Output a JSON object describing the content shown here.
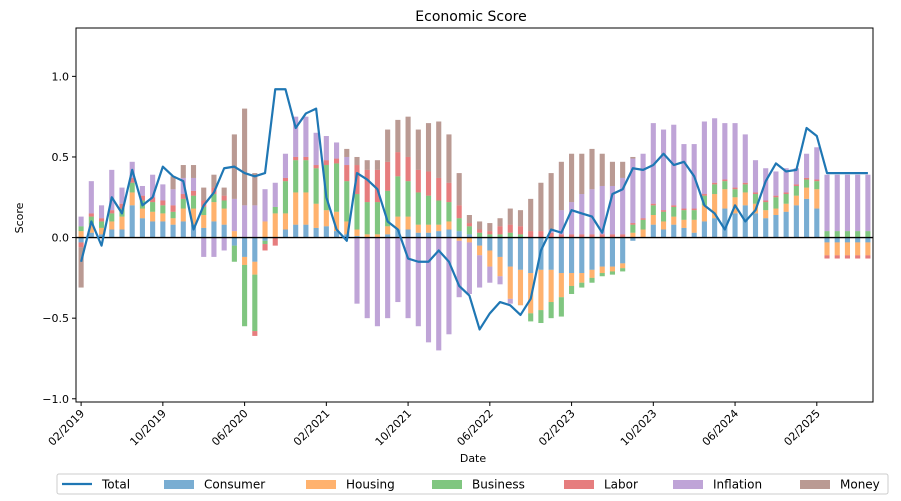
{
  "chart_data": {
    "type": "bar",
    "title": "Economic Score",
    "xlabel": "Date",
    "ylabel": "Score",
    "ylim": [
      -1.02,
      1.3
    ],
    "yticks": [
      -1.0,
      -0.5,
      0.0,
      0.5,
      1.0
    ],
    "ytick_labels": [
      "−1.0",
      "−0.5",
      "0.0",
      "0.5",
      "1.0"
    ],
    "xtick_labels": [
      "02/2019",
      "10/2019",
      "06/2020",
      "02/2021",
      "10/2021",
      "06/2022",
      "02/2023",
      "10/2023",
      "06/2024",
      "02/2025"
    ],
    "xtick_indices": [
      0,
      8,
      16,
      24,
      32,
      40,
      48,
      56,
      64,
      72
    ],
    "n_periods": 78,
    "stacked": true,
    "legend_position": "bottom",
    "series": [
      {
        "name": "Consumer",
        "color": "#1f77b4",
        "values": [
          -0.03,
          0.03,
          0.02,
          0.05,
          0.05,
          0.2,
          0.12,
          0.1,
          0.1,
          0.08,
          0.1,
          0.08,
          0.06,
          0.1,
          0.08,
          -0.05,
          -0.12,
          -0.15,
          -0.02,
          0.0,
          0.05,
          0.08,
          0.08,
          0.06,
          0.07,
          0.04,
          0.02,
          0.01,
          0.0,
          0.0,
          0.02,
          0.05,
          0.05,
          0.03,
          0.03,
          0.04,
          0.05,
          0.04,
          0.02,
          -0.05,
          -0.08,
          -0.12,
          -0.18,
          -0.2,
          -0.22,
          -0.2,
          -0.2,
          -0.22,
          -0.22,
          -0.22,
          -0.2,
          -0.18,
          -0.18,
          -0.16,
          -0.02,
          0.0,
          0.08,
          0.05,
          0.08,
          0.06,
          0.03,
          0.1,
          0.12,
          0.18,
          0.15,
          0.2,
          0.15,
          0.12,
          0.14,
          0.16,
          0.2,
          0.24,
          0.18,
          -0.03,
          -0.03,
          -0.03,
          -0.03,
          -0.03
        ]
      },
      {
        "name": "Housing",
        "color": "#ff7f0e",
        "values": [
          0.04,
          0.05,
          0.04,
          0.05,
          0.08,
          0.08,
          0.06,
          0.06,
          0.05,
          0.04,
          0.08,
          0.1,
          0.08,
          0.12,
          0.1,
          0.04,
          -0.05,
          -0.08,
          0.1,
          0.15,
          0.1,
          0.2,
          0.2,
          0.15,
          0.1,
          0.12,
          0.08,
          0.04,
          0.02,
          0.02,
          0.05,
          0.08,
          0.08,
          0.05,
          0.05,
          0.04,
          0.05,
          -0.02,
          -0.03,
          -0.06,
          -0.1,
          -0.12,
          -0.2,
          -0.22,
          -0.25,
          -0.25,
          -0.2,
          -0.15,
          -0.08,
          -0.06,
          -0.05,
          -0.04,
          -0.03,
          -0.03,
          0.03,
          0.05,
          0.06,
          0.05,
          0.05,
          0.05,
          0.08,
          0.1,
          0.15,
          0.12,
          0.1,
          0.08,
          0.06,
          0.05,
          0.04,
          0.05,
          0.06,
          0.07,
          0.12,
          -0.08,
          -0.08,
          -0.08,
          -0.08,
          -0.08
        ]
      },
      {
        "name": "Business",
        "color": "#2ca02c",
        "values": [
          0.03,
          0.05,
          0.04,
          0.05,
          0.05,
          0.06,
          0.05,
          0.06,
          0.05,
          0.04,
          0.06,
          0.08,
          0.05,
          0.05,
          0.05,
          -0.1,
          -0.38,
          -0.35,
          -0.02,
          0.04,
          0.2,
          0.2,
          0.2,
          0.22,
          0.28,
          0.3,
          0.25,
          0.22,
          0.2,
          0.2,
          0.22,
          0.25,
          0.22,
          0.2,
          0.18,
          0.15,
          0.12,
          0.08,
          0.05,
          0.03,
          0.02,
          0.02,
          0.03,
          0.02,
          -0.05,
          -0.08,
          -0.1,
          -0.12,
          -0.05,
          -0.03,
          -0.03,
          -0.02,
          -0.02,
          -0.02,
          0.05,
          0.06,
          0.06,
          0.06,
          0.06,
          0.06,
          0.06,
          0.06,
          0.06,
          0.05,
          0.05,
          0.05,
          0.06,
          0.05,
          0.07,
          0.06,
          0.06,
          0.05,
          0.05,
          0.04,
          0.04,
          0.04,
          0.04,
          0.04
        ]
      },
      {
        "name": "Labor",
        "color": "#d62728",
        "values": [
          -0.03,
          0.02,
          0.02,
          0.02,
          0.03,
          0.03,
          0.03,
          0.03,
          0.03,
          0.04,
          0.03,
          0.03,
          0.04,
          0.04,
          0.03,
          0.0,
          0.0,
          -0.03,
          -0.04,
          -0.05,
          0.02,
          0.02,
          0.02,
          0.02,
          0.03,
          0.03,
          0.1,
          0.18,
          0.2,
          0.2,
          0.18,
          0.15,
          0.15,
          0.14,
          0.15,
          0.14,
          0.12,
          0.08,
          0.02,
          0.02,
          0.02,
          0.05,
          0.05,
          0.05,
          0.04,
          0.04,
          0.03,
          0.02,
          0.02,
          0.02,
          0.02,
          0.02,
          0.02,
          0.02,
          0.01,
          0.01,
          0.01,
          0.01,
          0.01,
          0.01,
          0.01,
          0.01,
          0.01,
          0.01,
          0.01,
          0.01,
          0.01,
          0.01,
          0.01,
          0.01,
          0.01,
          0.01,
          0.01,
          -0.02,
          -0.02,
          -0.02,
          -0.02,
          -0.02
        ]
      },
      {
        "name": "Inflation",
        "color": "#9467bd",
        "values": [
          0.06,
          0.2,
          0.08,
          0.25,
          0.1,
          0.1,
          0.06,
          0.14,
          0.1,
          0.1,
          0.1,
          0.08,
          -0.12,
          -0.12,
          -0.08,
          0.2,
          0.2,
          0.2,
          0.2,
          0.15,
          0.15,
          0.25,
          0.25,
          0.2,
          0.15,
          0.1,
          0.05,
          -0.41,
          -0.5,
          -0.55,
          -0.5,
          -0.4,
          -0.5,
          -0.55,
          -0.65,
          -0.7,
          -0.6,
          -0.35,
          -0.32,
          -0.2,
          -0.1,
          -0.05,
          -0.03,
          0.0,
          0.0,
          0.0,
          0.02,
          0.15,
          0.2,
          0.25,
          0.28,
          0.3,
          0.3,
          0.35,
          0.4,
          0.4,
          0.5,
          0.5,
          0.5,
          0.4,
          0.4,
          0.45,
          0.4,
          0.35,
          0.4,
          0.3,
          0.2,
          0.2,
          0.15,
          0.15,
          0.1,
          0.15,
          0.2,
          0.35,
          0.35,
          0.35,
          0.35,
          0.35
        ]
      },
      {
        "name": "Money",
        "color": "#8c564b",
        "values": [
          -0.25,
          0.0,
          0.0,
          0.0,
          0.0,
          0.0,
          0.0,
          0.0,
          0.0,
          0.08,
          0.08,
          0.08,
          0.08,
          0.08,
          0.05,
          0.4,
          0.6,
          0.2,
          0.0,
          0.0,
          0.0,
          0.0,
          0.0,
          0.0,
          0.0,
          0.0,
          0.05,
          0.05,
          0.06,
          0.06,
          0.2,
          0.2,
          0.25,
          0.25,
          0.3,
          0.35,
          0.3,
          0.2,
          0.05,
          0.05,
          0.05,
          0.05,
          0.1,
          0.1,
          0.2,
          0.3,
          0.35,
          0.3,
          0.3,
          0.25,
          0.25,
          0.2,
          0.15,
          0.1,
          0.01,
          0.0,
          0.0,
          0.0,
          0.0,
          0.0,
          0.0,
          0.0,
          0.0,
          0.0,
          0.0,
          0.0,
          0.0,
          0.0,
          0.0,
          0.0,
          0.0,
          0.0,
          0.0,
          0.0,
          0.0,
          0.0,
          0.0,
          0.0
        ]
      }
    ],
    "total": {
      "name": "Total",
      "color": "#1f77b4",
      "values": [
        -0.15,
        0.1,
        -0.05,
        0.25,
        0.15,
        0.42,
        0.2,
        0.25,
        0.44,
        0.38,
        0.35,
        0.05,
        0.2,
        0.28,
        0.43,
        0.44,
        0.4,
        0.38,
        0.4,
        0.92,
        0.92,
        0.68,
        0.77,
        0.8,
        0.25,
        0.05,
        -0.02,
        0.4,
        0.36,
        0.3,
        0.1,
        0.05,
        -0.13,
        -0.15,
        -0.15,
        -0.08,
        -0.15,
        -0.3,
        -0.36,
        -0.57,
        -0.47,
        -0.4,
        -0.42,
        -0.48,
        -0.38,
        -0.08,
        0.05,
        0.03,
        0.17,
        0.15,
        0.13,
        0.03,
        0.27,
        0.3,
        0.43,
        0.42,
        0.45,
        0.52,
        0.45,
        0.47,
        0.38,
        0.2,
        0.15,
        0.05,
        0.2,
        0.1,
        0.17,
        0.35,
        0.46,
        0.41,
        0.42,
        0.68,
        0.63,
        0.4,
        0.4,
        0.4,
        0.4,
        0.4
      ]
    },
    "legend": [
      "Total",
      "Consumer",
      "Housing",
      "Business",
      "Labor",
      "Inflation",
      "Money"
    ],
    "legend_colors": [
      "#1f77b4",
      "#1f77b4",
      "#ff7f0e",
      "#2ca02c",
      "#d62728",
      "#9467bd",
      "#8c564b"
    ],
    "legend_kinds": [
      "line",
      "bar",
      "bar",
      "bar",
      "bar",
      "bar",
      "bar"
    ]
  }
}
